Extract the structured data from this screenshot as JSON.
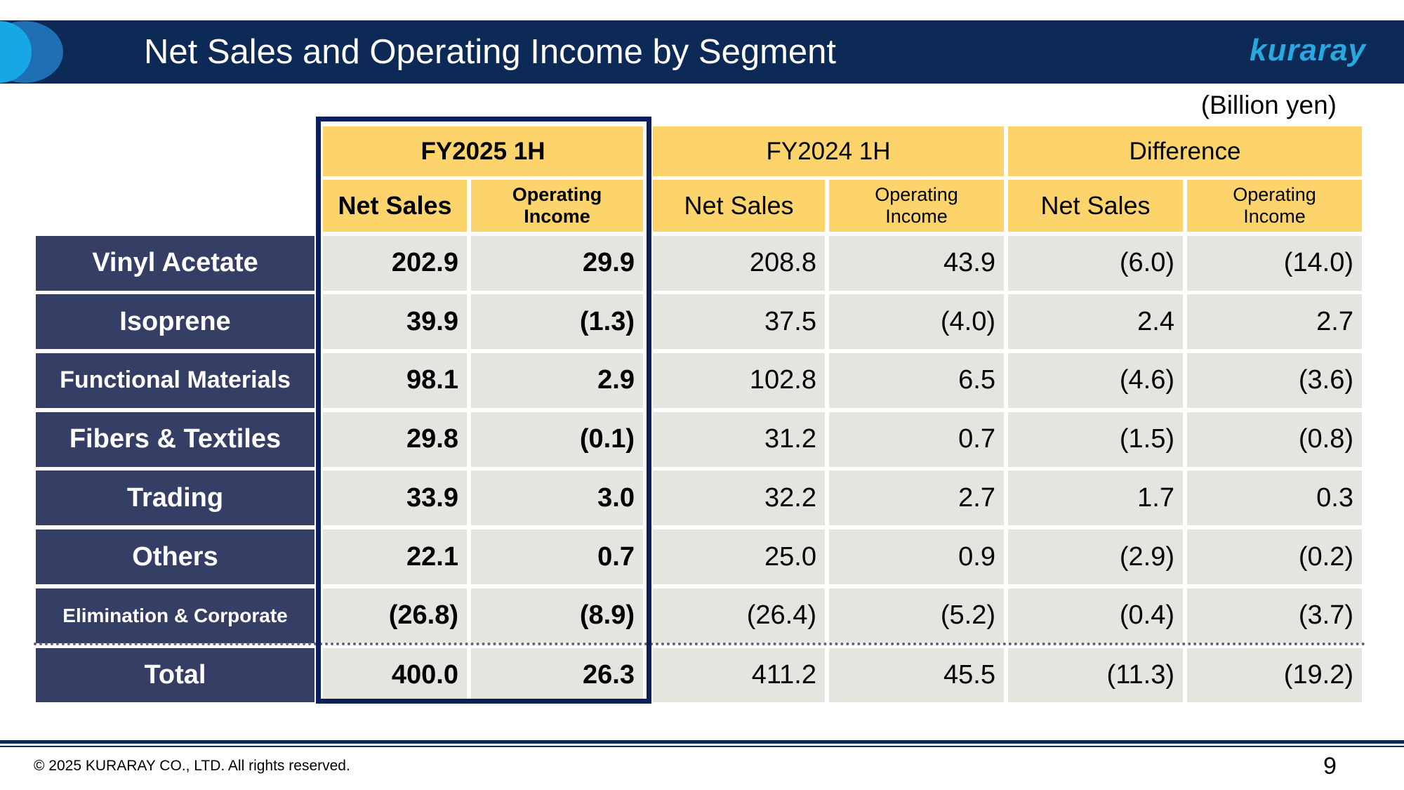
{
  "header": {
    "title": "Net Sales and Operating Income by Segment",
    "logo": "kuraray"
  },
  "unit": "(Billion yen)",
  "table": {
    "groups": [
      "FY2025 1H",
      "FY2024 1H",
      "Difference"
    ],
    "subheaders": [
      "Net Sales",
      "Operating Income",
      "Net Sales",
      "Operating Income",
      "Net Sales",
      "Operating Income"
    ],
    "rows": [
      [
        "Vinyl Acetate",
        "202.9",
        "29.9",
        "208.8",
        "43.9",
        "(6.0)",
        "(14.0)"
      ],
      [
        "Isoprene",
        "39.9",
        "(1.3)",
        "37.5",
        "(4.0)",
        "2.4",
        "2.7"
      ],
      [
        "Functional Materials",
        "98.1",
        "2.9",
        "102.8",
        "6.5",
        "(4.6)",
        "(3.6)"
      ],
      [
        "Fibers & Textiles",
        "29.8",
        "(0.1)",
        "31.2",
        "0.7",
        "(1.5)",
        "(0.8)"
      ],
      [
        "Trading",
        "33.9",
        "3.0",
        "32.2",
        "2.7",
        "1.7",
        "0.3"
      ],
      [
        "Others",
        "22.1",
        "0.7",
        "25.0",
        "0.9",
        "(2.9)",
        "(0.2)"
      ],
      [
        "Elimination & Corporate",
        "(26.8)",
        "(8.9)",
        "(26.4)",
        "(5.2)",
        "(0.4)",
        "(3.7)"
      ],
      [
        "Total",
        "400.0",
        "26.3",
        "411.2",
        "45.5",
        "(11.3)",
        "(19.2)"
      ]
    ]
  },
  "footer": {
    "copyright": "© 2025 KURARAY CO., LTD. All rights reserved.",
    "page": "9"
  }
}
